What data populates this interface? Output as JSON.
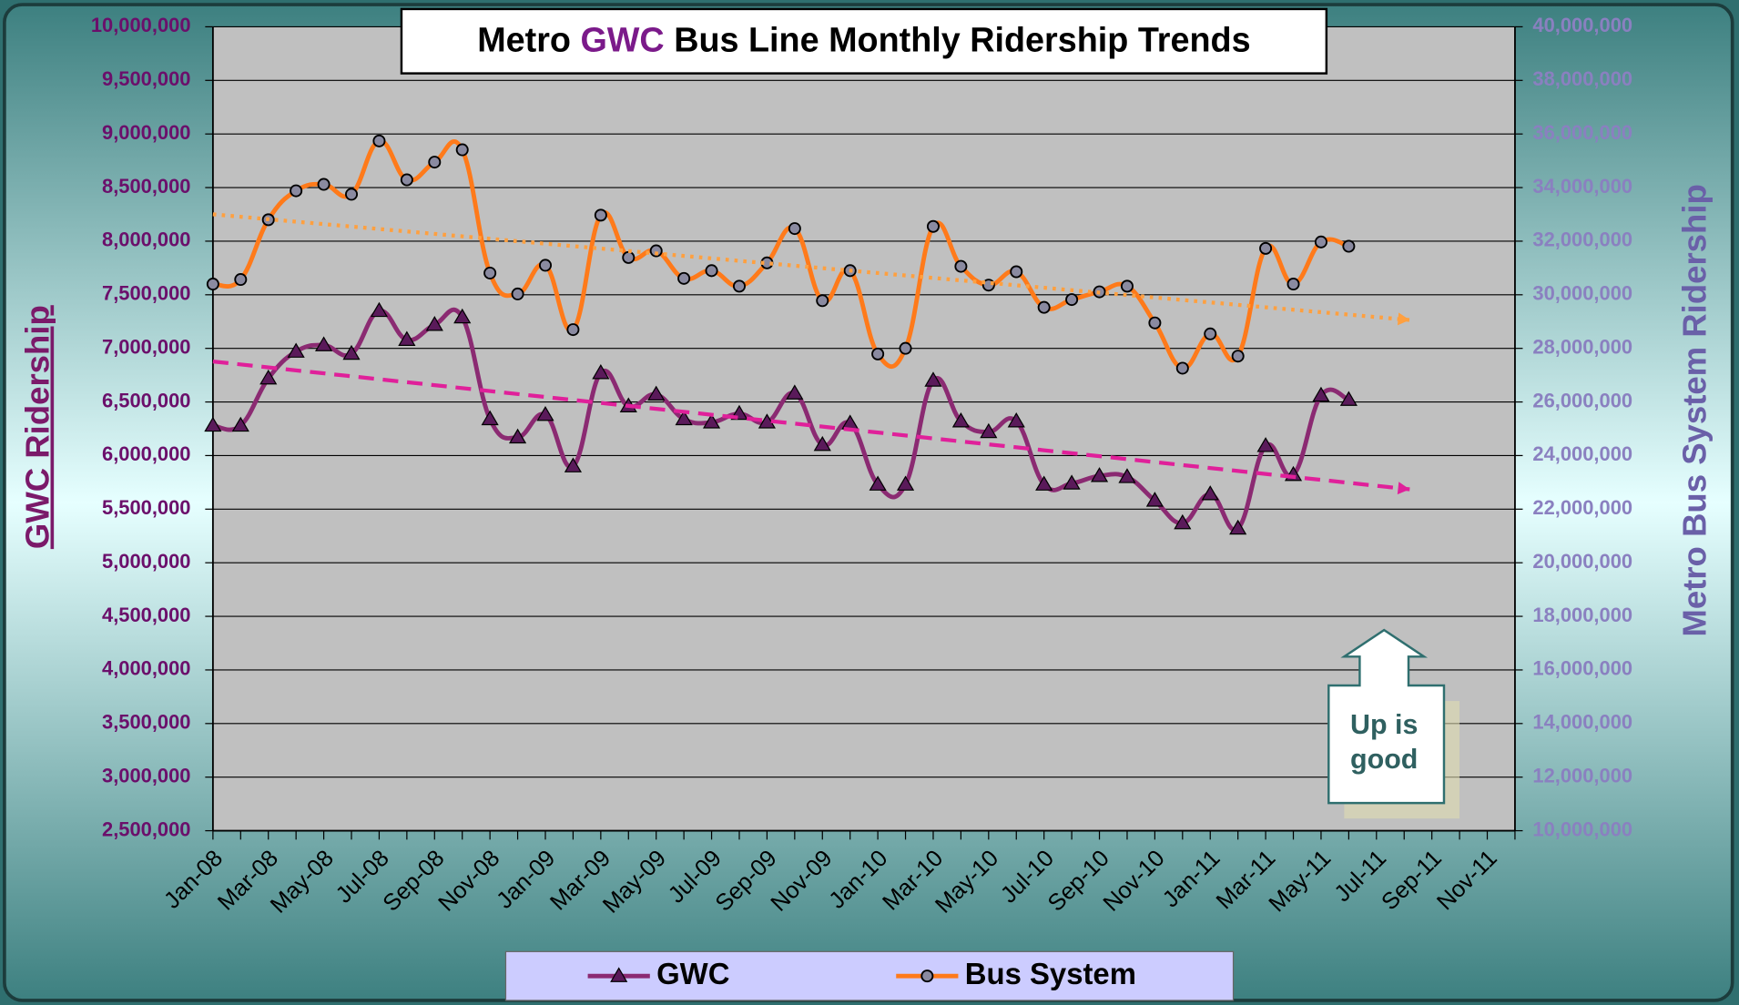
{
  "chart_data": {
    "type": "line",
    "title": [
      "Metro ",
      "GWC",
      " Bus Line Monthly Ridership Trends"
    ],
    "ylabel": "GWC Ridership",
    "y2label": "Metro Bus System Ridership",
    "annotation": [
      "Up is",
      "good"
    ],
    "categories": [
      "Jan-08",
      null,
      "Mar-08",
      null,
      "May-08",
      null,
      "Jul-08",
      null,
      "Sep-08",
      null,
      "Nov-08",
      null,
      "Jan-09",
      null,
      "Mar-09",
      null,
      "May-09",
      null,
      "Jul-09",
      null,
      "Sep-09",
      null,
      "Nov-09",
      null,
      "Jan-10",
      null,
      "Mar-10",
      null,
      "May-10",
      null,
      "Jul-10",
      null,
      "Sep-10",
      null,
      "Nov-10",
      null,
      "Jan-11",
      null,
      "Mar-11",
      null,
      "May-11",
      null,
      "Jul-11",
      null,
      "Sep-11",
      null,
      "Nov-11",
      null
    ],
    "series": [
      {
        "name": "GWC",
        "color": "#8b2a72",
        "marker": "triangle",
        "marker_color": "#5a1a5a",
        "axis": "y",
        "trendline": "linear",
        "trend_color": "#e0209a",
        "values": [
          6280000,
          6280000,
          6720000,
          6970000,
          7030000,
          6950000,
          7350000,
          7080000,
          7220000,
          7290000,
          6340000,
          6170000,
          6380000,
          5900000,
          6770000,
          6460000,
          6570000,
          6340000,
          6310000,
          6390000,
          6310000,
          6580000,
          6100000,
          6300000,
          5730000,
          5730000,
          6700000,
          6320000,
          6220000,
          6320000,
          5730000,
          5740000,
          5810000,
          5800000,
          5580000,
          5370000,
          5640000,
          5320000,
          6090000,
          5820000,
          6560000,
          6520000,
          null,
          null,
          null,
          null,
          null,
          null
        ]
      },
      {
        "name": "Bus System",
        "color": "#ff7a1a",
        "marker": "circle",
        "marker_color": "#8a8aa0",
        "axis": "y2",
        "trendline": "linear",
        "trend_color": "#ffa040",
        "values": [
          30400000,
          30570000,
          32800000,
          33880000,
          34120000,
          33750000,
          35740000,
          34290000,
          34950000,
          35410000,
          30810000,
          30030000,
          31100000,
          28700000,
          32970000,
          31390000,
          31640000,
          30610000,
          30900000,
          30320000,
          31190000,
          32470000,
          29780000,
          30900000,
          27790000,
          28000000,
          32550000,
          31060000,
          30360000,
          30860000,
          29530000,
          29820000,
          30110000,
          30320000,
          28950000,
          27260000,
          28540000,
          27710000,
          31730000,
          30400000,
          31970000,
          31810000,
          null,
          null,
          null,
          null,
          null,
          null
        ]
      }
    ],
    "ylim": [
      2500000,
      10000000
    ],
    "yticks": [
      {
        "value": 2500000,
        "label": "2,500,000"
      },
      {
        "value": 3000000,
        "label": "3,000,000"
      },
      {
        "value": 3500000,
        "label": "3,500,000"
      },
      {
        "value": 4000000,
        "label": "4,000,000"
      },
      {
        "value": 4500000,
        "label": "4,500,000"
      },
      {
        "value": 5000000,
        "label": "5,000,000"
      },
      {
        "value": 5500000,
        "label": "5,500,000"
      },
      {
        "value": 6000000,
        "label": "6,000,000"
      },
      {
        "value": 6500000,
        "label": "6,500,000"
      },
      {
        "value": 7000000,
        "label": "7,000,000"
      },
      {
        "value": 7500000,
        "label": "7,500,000"
      },
      {
        "value": 8000000,
        "label": "8,000,000"
      },
      {
        "value": 8500000,
        "label": "8,500,000"
      },
      {
        "value": 9000000,
        "label": "9,000,000"
      },
      {
        "value": 9500000,
        "label": "9,500,000"
      },
      {
        "value": 10000000,
        "label": "10,000,000"
      }
    ],
    "y2lim": [
      10000000,
      40000000
    ],
    "y2ticks": [
      {
        "value": 10000000,
        "label": "10,000,000"
      },
      {
        "value": 12000000,
        "label": "12,000,000"
      },
      {
        "value": 14000000,
        "label": "14,000,000"
      },
      {
        "value": 16000000,
        "label": "16,000,000"
      },
      {
        "value": 18000000,
        "label": "18,000,000"
      },
      {
        "value": 20000000,
        "label": "20,000,000"
      },
      {
        "value": 22000000,
        "label": "22,000,000"
      },
      {
        "value": 24000000,
        "label": "24,000,000"
      },
      {
        "value": 26000000,
        "label": "26,000,000"
      },
      {
        "value": 28000000,
        "label": "28,000,000"
      },
      {
        "value": 30000000,
        "label": "30,000,000"
      },
      {
        "value": 32000000,
        "label": "32,000,000"
      },
      {
        "value": 34000000,
        "label": "34,000,000"
      },
      {
        "value": 36000000,
        "label": "36,000,000"
      },
      {
        "value": 38000000,
        "label": "38,000,000"
      },
      {
        "value": 40000000,
        "label": "40,000,000"
      }
    ],
    "grid": true,
    "legend_position": "bottom"
  }
}
